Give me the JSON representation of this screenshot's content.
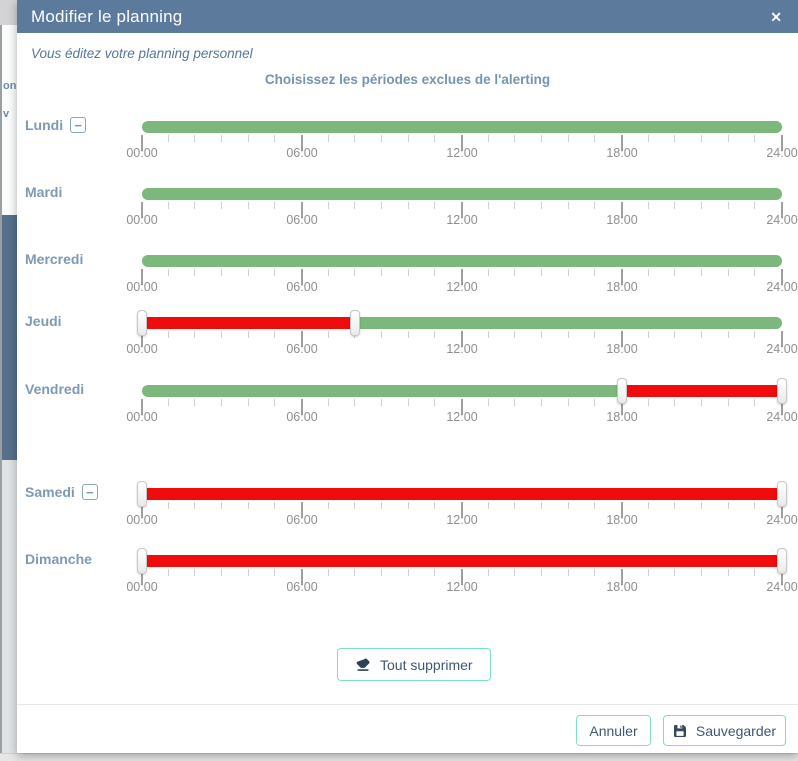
{
  "modal": {
    "title": "Modifier le planning",
    "close_icon": "✕",
    "subtitle": "Vous éditez votre planning personnel",
    "heading": "Choisissez les périodes exclues de l'alerting",
    "minus_icon": "−"
  },
  "actions": {
    "clear_all": "Tout supprimer",
    "cancel": "Annuler",
    "save": "Sauvegarder"
  },
  "background_fragments": {
    "fragment_1": "on",
    "fragment_2": "v"
  },
  "slider": {
    "hours_total": 24,
    "major_tick_interval_hours": 6,
    "tick_labels": [
      "00:00",
      "06:00",
      "12:00",
      "18:00",
      "24:00"
    ]
  },
  "colors": {
    "header_bg": "#5b7a9c",
    "day_label": "#7e99b4",
    "heading_text": "#7494b2",
    "subtitle_text": "#54779b",
    "included_green": "#7cb87c",
    "excluded_red": "#f00c0c",
    "button_border": "#79e2c6",
    "button_text": "#3e5871",
    "tick_minor": "#d0d0d0",
    "tick_major": "#9f9f9f",
    "time_label": "#8f8f8f"
  },
  "days": [
    {
      "label": "Lundi",
      "removable": true,
      "handles": [],
      "segments": [
        {
          "from": 0,
          "to": 24,
          "state": "included"
        }
      ]
    },
    {
      "label": "Mardi",
      "removable": false,
      "handles": [],
      "segments": [
        {
          "from": 0,
          "to": 24,
          "state": "included"
        }
      ]
    },
    {
      "label": "Mercredi",
      "removable": false,
      "handles": [],
      "segments": [
        {
          "from": 0,
          "to": 24,
          "state": "included"
        }
      ]
    },
    {
      "label": "Jeudi",
      "removable": false,
      "handles": [
        0,
        8
      ],
      "segments": [
        {
          "from": 0,
          "to": 8,
          "state": "excluded"
        },
        {
          "from": 8,
          "to": 24,
          "state": "included"
        }
      ]
    },
    {
      "label": "Vendredi",
      "removable": false,
      "handles": [
        18,
        24
      ],
      "segments": [
        {
          "from": 0,
          "to": 18,
          "state": "included"
        },
        {
          "from": 18,
          "to": 24,
          "state": "excluded"
        }
      ]
    },
    {
      "label": "Samedi",
      "removable": true,
      "handles": [
        0,
        24
      ],
      "segments": [
        {
          "from": 0,
          "to": 24,
          "state": "excluded"
        }
      ]
    },
    {
      "label": "Dimanche",
      "removable": false,
      "handles": [
        0,
        24
      ],
      "segments": [
        {
          "from": 0,
          "to": 24,
          "state": "excluded"
        }
      ]
    }
  ]
}
